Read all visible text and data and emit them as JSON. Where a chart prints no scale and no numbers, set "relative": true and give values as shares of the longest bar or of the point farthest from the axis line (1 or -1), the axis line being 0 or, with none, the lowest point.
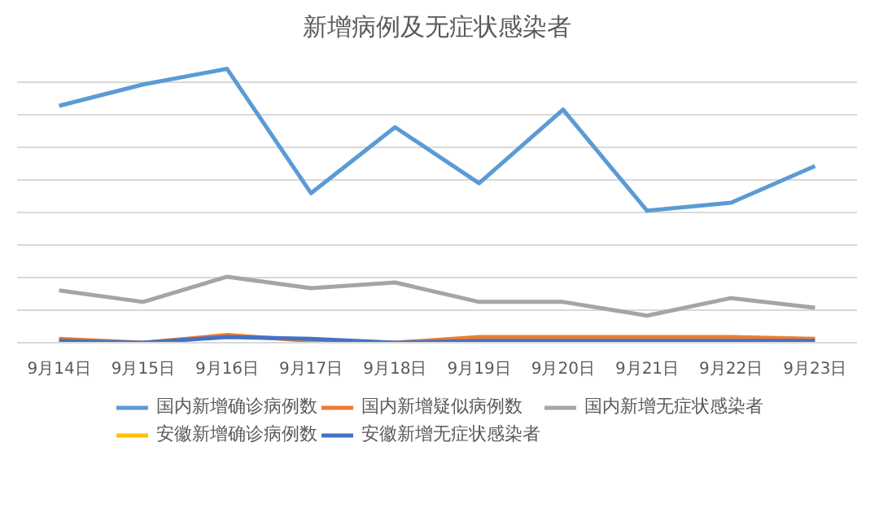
{
  "chart_data": {
    "type": "line",
    "title": "新增病例及无症状感染者",
    "relative": true,
    "grid": "y",
    "legend": "bottom",
    "categories": [
      "9月14日",
      "9月15日",
      "9月16日",
      "9月17日",
      "9月18日",
      "9月19日",
      "9月20日",
      "9月21日",
      "9月22日",
      "9月23日"
    ],
    "series": [
      {
        "name": "国内新增确诊病例数",
        "color": "#5b9bd5",
        "values": [
          0.865,
          0.943,
          1,
          0.546,
          0.787,
          0.582,
          0.851,
          0.482,
          0.511,
          0.645
        ]
      },
      {
        "name": "国内新增疑似病例数",
        "color": "#ed7d31",
        "values": [
          0.014,
          0,
          0.028,
          0.007,
          0,
          0.021,
          0.021,
          0.021,
          0.021,
          0.014
        ]
      },
      {
        "name": "国内新增无症状感染者",
        "color": "#a5a5a5",
        "values": [
          0.191,
          0.149,
          0.241,
          0.199,
          0.22,
          0.149,
          0.149,
          0.099,
          0.163,
          0.128
        ]
      },
      {
        "name": "安徽新增确诊病例数",
        "color": "#ffc000",
        "values": [
          null,
          null,
          null,
          null,
          null,
          null,
          null,
          null,
          null,
          null
        ]
      },
      {
        "name": "安徽新增无症状感染者",
        "color": "#4472c4",
        "values": [
          0.007,
          0,
          0.021,
          0.014,
          0,
          0.007,
          0.007,
          0.007,
          0.007,
          0.007
        ]
      }
    ]
  }
}
